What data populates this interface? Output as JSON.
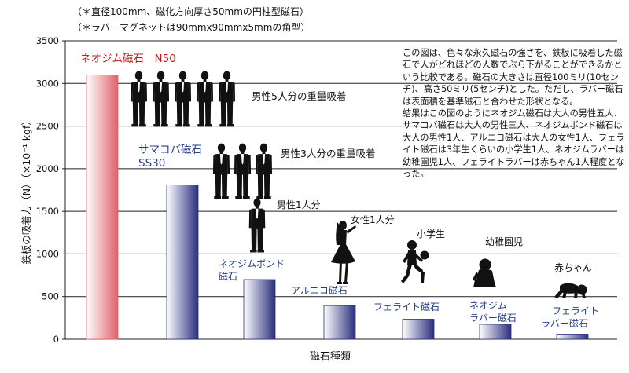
{
  "notes": [
    "（＊直径100mm、磁化方向厚さ50mmの円柱型磁石）",
    "（＊ラバーマグネットは90mmx90mmx5mmの角型）"
  ],
  "description": {
    "paragraph1": "この図は、色々な永久磁石の強さを、鉄板に吸着した磁石で人がどれほどの人数でぶら下がることができるかという比較である。磁石の大きさは直径100ミリ(10センチ)、高さ50ミリ(5センチ)とした。ただし、ラバー磁石は表面積を基準磁石と合わせた形状となる。",
    "paragraph2": "結果はこの図のようにネオジム磁石は大人の男性五人、サマコバ磁石は大人の男性三人、ネオジムボンド磁石は大人の男性1人、アルニコ磁石は大人の女性1人、フェライト磁石は3年生くらいの小学生1人、ネオジムラバーは幼稚園児1人、フェライトラバーは赤ちゃん1人程度となった。"
  },
  "annotations": {
    "men5": "男性5人分の重量吸着",
    "men3": "男性3人分の重量吸着",
    "man1": "男性1人分",
    "woman1": "女性1人分",
    "schoolchild": "小学生",
    "kindergartner": "幼稚園児",
    "baby": "赤ちゃん"
  },
  "colors": {
    "red_bar": "#e06068",
    "blue_bar": "#2a2e7e",
    "red_label": "#c8161d",
    "blue_label": "#27408b",
    "grid": "#222222",
    "silhouette": "#111111"
  },
  "icons": [
    "man-silhouette-icon",
    "woman-silhouette-icon",
    "child-with-ball-icon",
    "kindergartner-silhouette-icon",
    "crawling-baby-icon"
  ],
  "chart_data": {
    "type": "bar",
    "ylabel": "鉄板の吸着力（N）（×10⁻¹ kgf）",
    "xlabel": "磁石種類",
    "ylim": [
      0,
      3500
    ],
    "yticks": [
      0,
      500,
      1000,
      1500,
      2000,
      2500,
      3000,
      3500
    ],
    "grid": true,
    "categories": [
      [
        "ネオジム磁石　N50"
      ],
      [
        "サマコバ磁石",
        "SS30"
      ],
      [
        "ネオジムボンド",
        "磁石"
      ],
      [
        "アルニコ磁石"
      ],
      [
        "フェライト磁石"
      ],
      [
        "ネオジム",
        "ラバー磁石"
      ],
      [
        "フェライト",
        "ラバー磁石"
      ]
    ],
    "values": [
      3100,
      1810,
      700,
      395,
      235,
      175,
      60
    ]
  }
}
